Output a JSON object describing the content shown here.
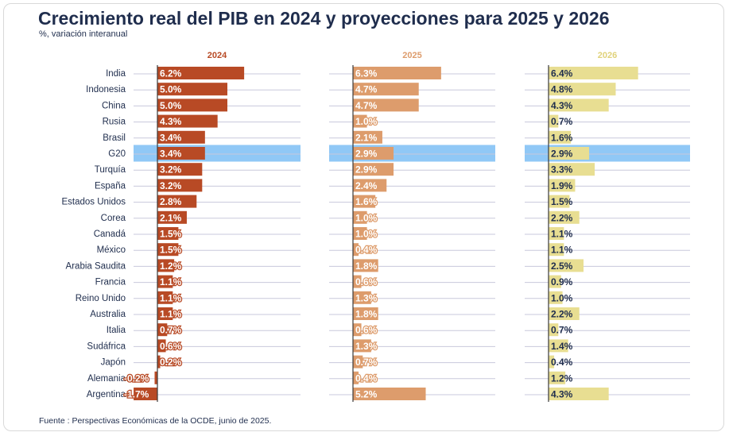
{
  "title": "Crecimiento real del PIB en 2024 y proyecciones para 2025 y 2026",
  "subtitle": "%, variación interanual",
  "source": "Fuente : Perspectivas Económicas de la OCDE, junio de 2025.",
  "colors": {
    "y2024": "#b84a25",
    "y2025": "#dd9c6c",
    "y2026": "#e8de92",
    "highlight": "#90c8f6",
    "gridline": "#c8c8dc",
    "text": "#1f2d4d"
  },
  "chart_data": {
    "type": "bar",
    "orientation": "horizontal",
    "highlight_category": "G20",
    "categories": [
      "India",
      "Indonesia",
      "China",
      "Rusia",
      "Brasil",
      "G20",
      "Turquía",
      "España",
      "Estados Unidos",
      "Corea",
      "Canadá",
      "México",
      "Arabia Saudita",
      "Francia",
      "Reino Unido",
      "Australia",
      "Italia",
      "Sudáfrica",
      "Japón",
      "Alemania",
      "Argentina"
    ],
    "series": [
      {
        "name": "2024",
        "values": [
          6.2,
          5.0,
          5.0,
          4.3,
          3.4,
          3.4,
          3.2,
          3.2,
          2.8,
          2.1,
          1.5,
          1.5,
          1.2,
          1.1,
          1.1,
          1.1,
          0.7,
          0.6,
          0.2,
          -0.2,
          -1.7
        ],
        "labels": [
          "6.2%",
          "5.0%",
          "5.0%",
          "4.3%",
          "3.4%",
          "3.4%",
          "3.2%",
          "3.2%",
          "2.8%",
          "2.1%",
          "1.5%",
          "1.5%",
          "1.2%",
          "1.1%",
          "1.1%",
          "1.1%",
          "0.7%",
          "0.6%",
          "0.2%",
          "-0.2%",
          "-1.7%"
        ]
      },
      {
        "name": "2025",
        "values": [
          6.3,
          4.7,
          4.7,
          1.0,
          2.1,
          2.9,
          2.9,
          2.4,
          1.6,
          1.0,
          1.0,
          0.4,
          1.8,
          0.6,
          1.3,
          1.8,
          0.6,
          1.3,
          0.7,
          0.4,
          5.2
        ],
        "labels": [
          "6.3%",
          "4.7%",
          "4.7%",
          "1.0%",
          "2.1%",
          "2.9%",
          "2.9%",
          "2.4%",
          "1.6%",
          "1.0%",
          "1.0%",
          "0.4%",
          "1.8%",
          "0.6%",
          "1.3%",
          "1.8%",
          "0.6%",
          "1.3%",
          "0.7%",
          "0.4%",
          "5.2%"
        ]
      },
      {
        "name": "2026",
        "values": [
          6.4,
          4.8,
          4.3,
          0.7,
          1.6,
          2.9,
          3.3,
          1.9,
          1.5,
          2.2,
          1.1,
          1.1,
          2.5,
          0.9,
          1.0,
          2.2,
          0.7,
          1.4,
          0.4,
          1.2,
          4.3
        ],
        "labels": [
          "6.4%",
          "4.8%",
          "4.3%",
          "0.7%",
          "1.6%",
          "2.9%",
          "3.3%",
          "1.9%",
          "1.5%",
          "2.2%",
          "1.1%",
          "1.1%",
          "2.5%",
          "0.9%",
          "1.0%",
          "2.2%",
          "0.7%",
          "1.4%",
          "0.4%",
          "1.2%",
          "4.3%"
        ]
      }
    ]
  }
}
